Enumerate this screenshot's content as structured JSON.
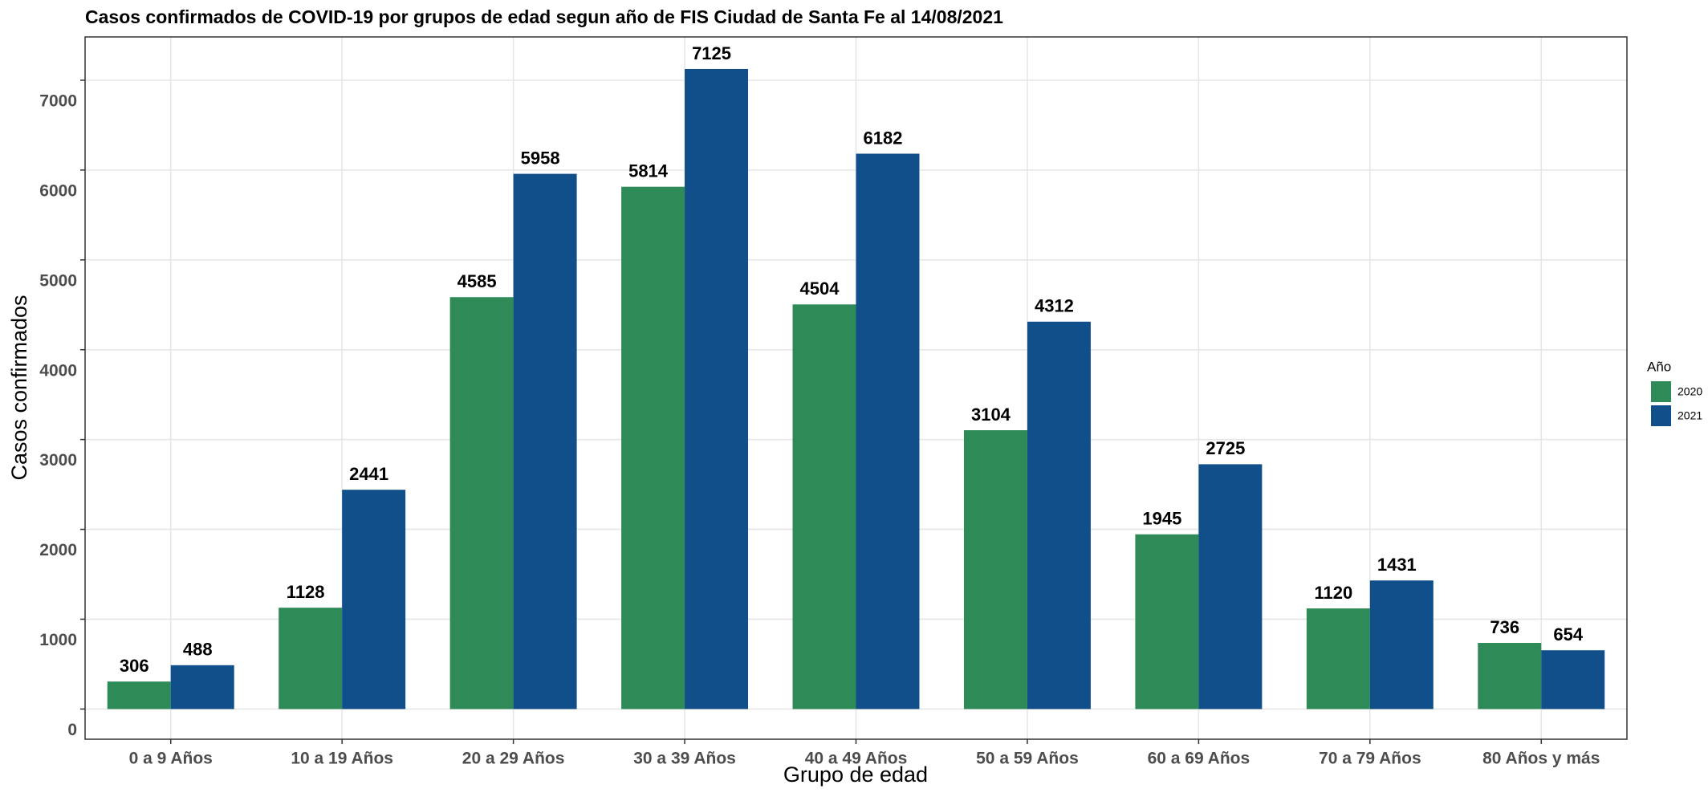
{
  "chart_data": {
    "type": "bar",
    "title": "Casos confirmados de COVID-19 por grupos de edad segun año de FIS Ciudad de Santa Fe al 14/08/2021",
    "x_label": "Grupo de edad",
    "y_label": "Casos confirmados",
    "categories": [
      "0 a 9 Años",
      "10 a 19 Años",
      "20 a 29 Años",
      "30 a 39 Años",
      "40 a 49 Años",
      "50 a 59 Años",
      "60 a 69 Años",
      "70 a 79 Años",
      "80 Años y más"
    ],
    "series": [
      {
        "name": "2020",
        "color": "#2e8b57",
        "values": [
          306,
          1128,
          4585,
          5814,
          4504,
          3104,
          1945,
          1120,
          736
        ]
      },
      {
        "name": "2021",
        "color": "#114f8a",
        "values": [
          488,
          2441,
          5958,
          7125,
          6182,
          4312,
          2725,
          1431,
          654
        ]
      }
    ],
    "legend_title": "Año",
    "legend": "right",
    "ylim": [
      -336,
      7482
    ],
    "yticks": [
      0,
      1000,
      2000,
      3000,
      4000,
      5000,
      6000,
      7000
    ],
    "grid": true
  }
}
